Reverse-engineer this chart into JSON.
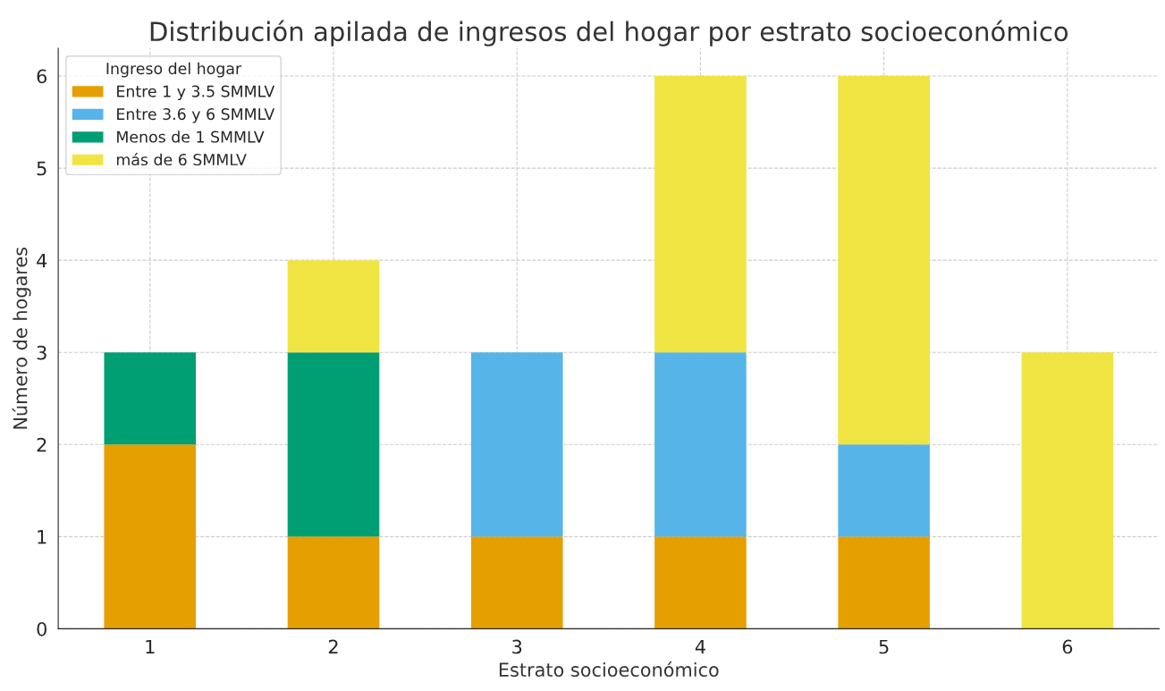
{
  "chart_data": {
    "type": "bar",
    "title": "Distribución apilada de ingresos del hogar por estrato socioeconómico",
    "xlabel": "Estrato socioeconómico",
    "ylabel": "Número de hogares",
    "legend_title": "Ingreso del hogar",
    "categories": [
      "1",
      "2",
      "3",
      "4",
      "5",
      "6"
    ],
    "stacked": true,
    "series": [
      {
        "name": "Entre 1 y 3.5 SMMLV",
        "color": "#e69f00",
        "values": [
          2,
          1,
          1,
          1,
          1,
          null
        ]
      },
      {
        "name": "Entre 3.6 y 6 SMMLV",
        "color": "#56b4e9",
        "values": [
          null,
          null,
          2,
          2,
          1,
          null
        ]
      },
      {
        "name": "Menos de 1 SMMLV",
        "color": "#009e73",
        "values": [
          1,
          2,
          null,
          null,
          null,
          null
        ]
      },
      {
        "name": "más de 6 SMMLV",
        "color": "#f0e442",
        "values": [
          null,
          1,
          null,
          3,
          4,
          3
        ]
      }
    ],
    "ylim": [
      0,
      6.3
    ],
    "yticks": [
      0,
      1,
      2,
      3,
      4,
      5,
      6
    ],
    "grid": true,
    "legend": "top left"
  }
}
